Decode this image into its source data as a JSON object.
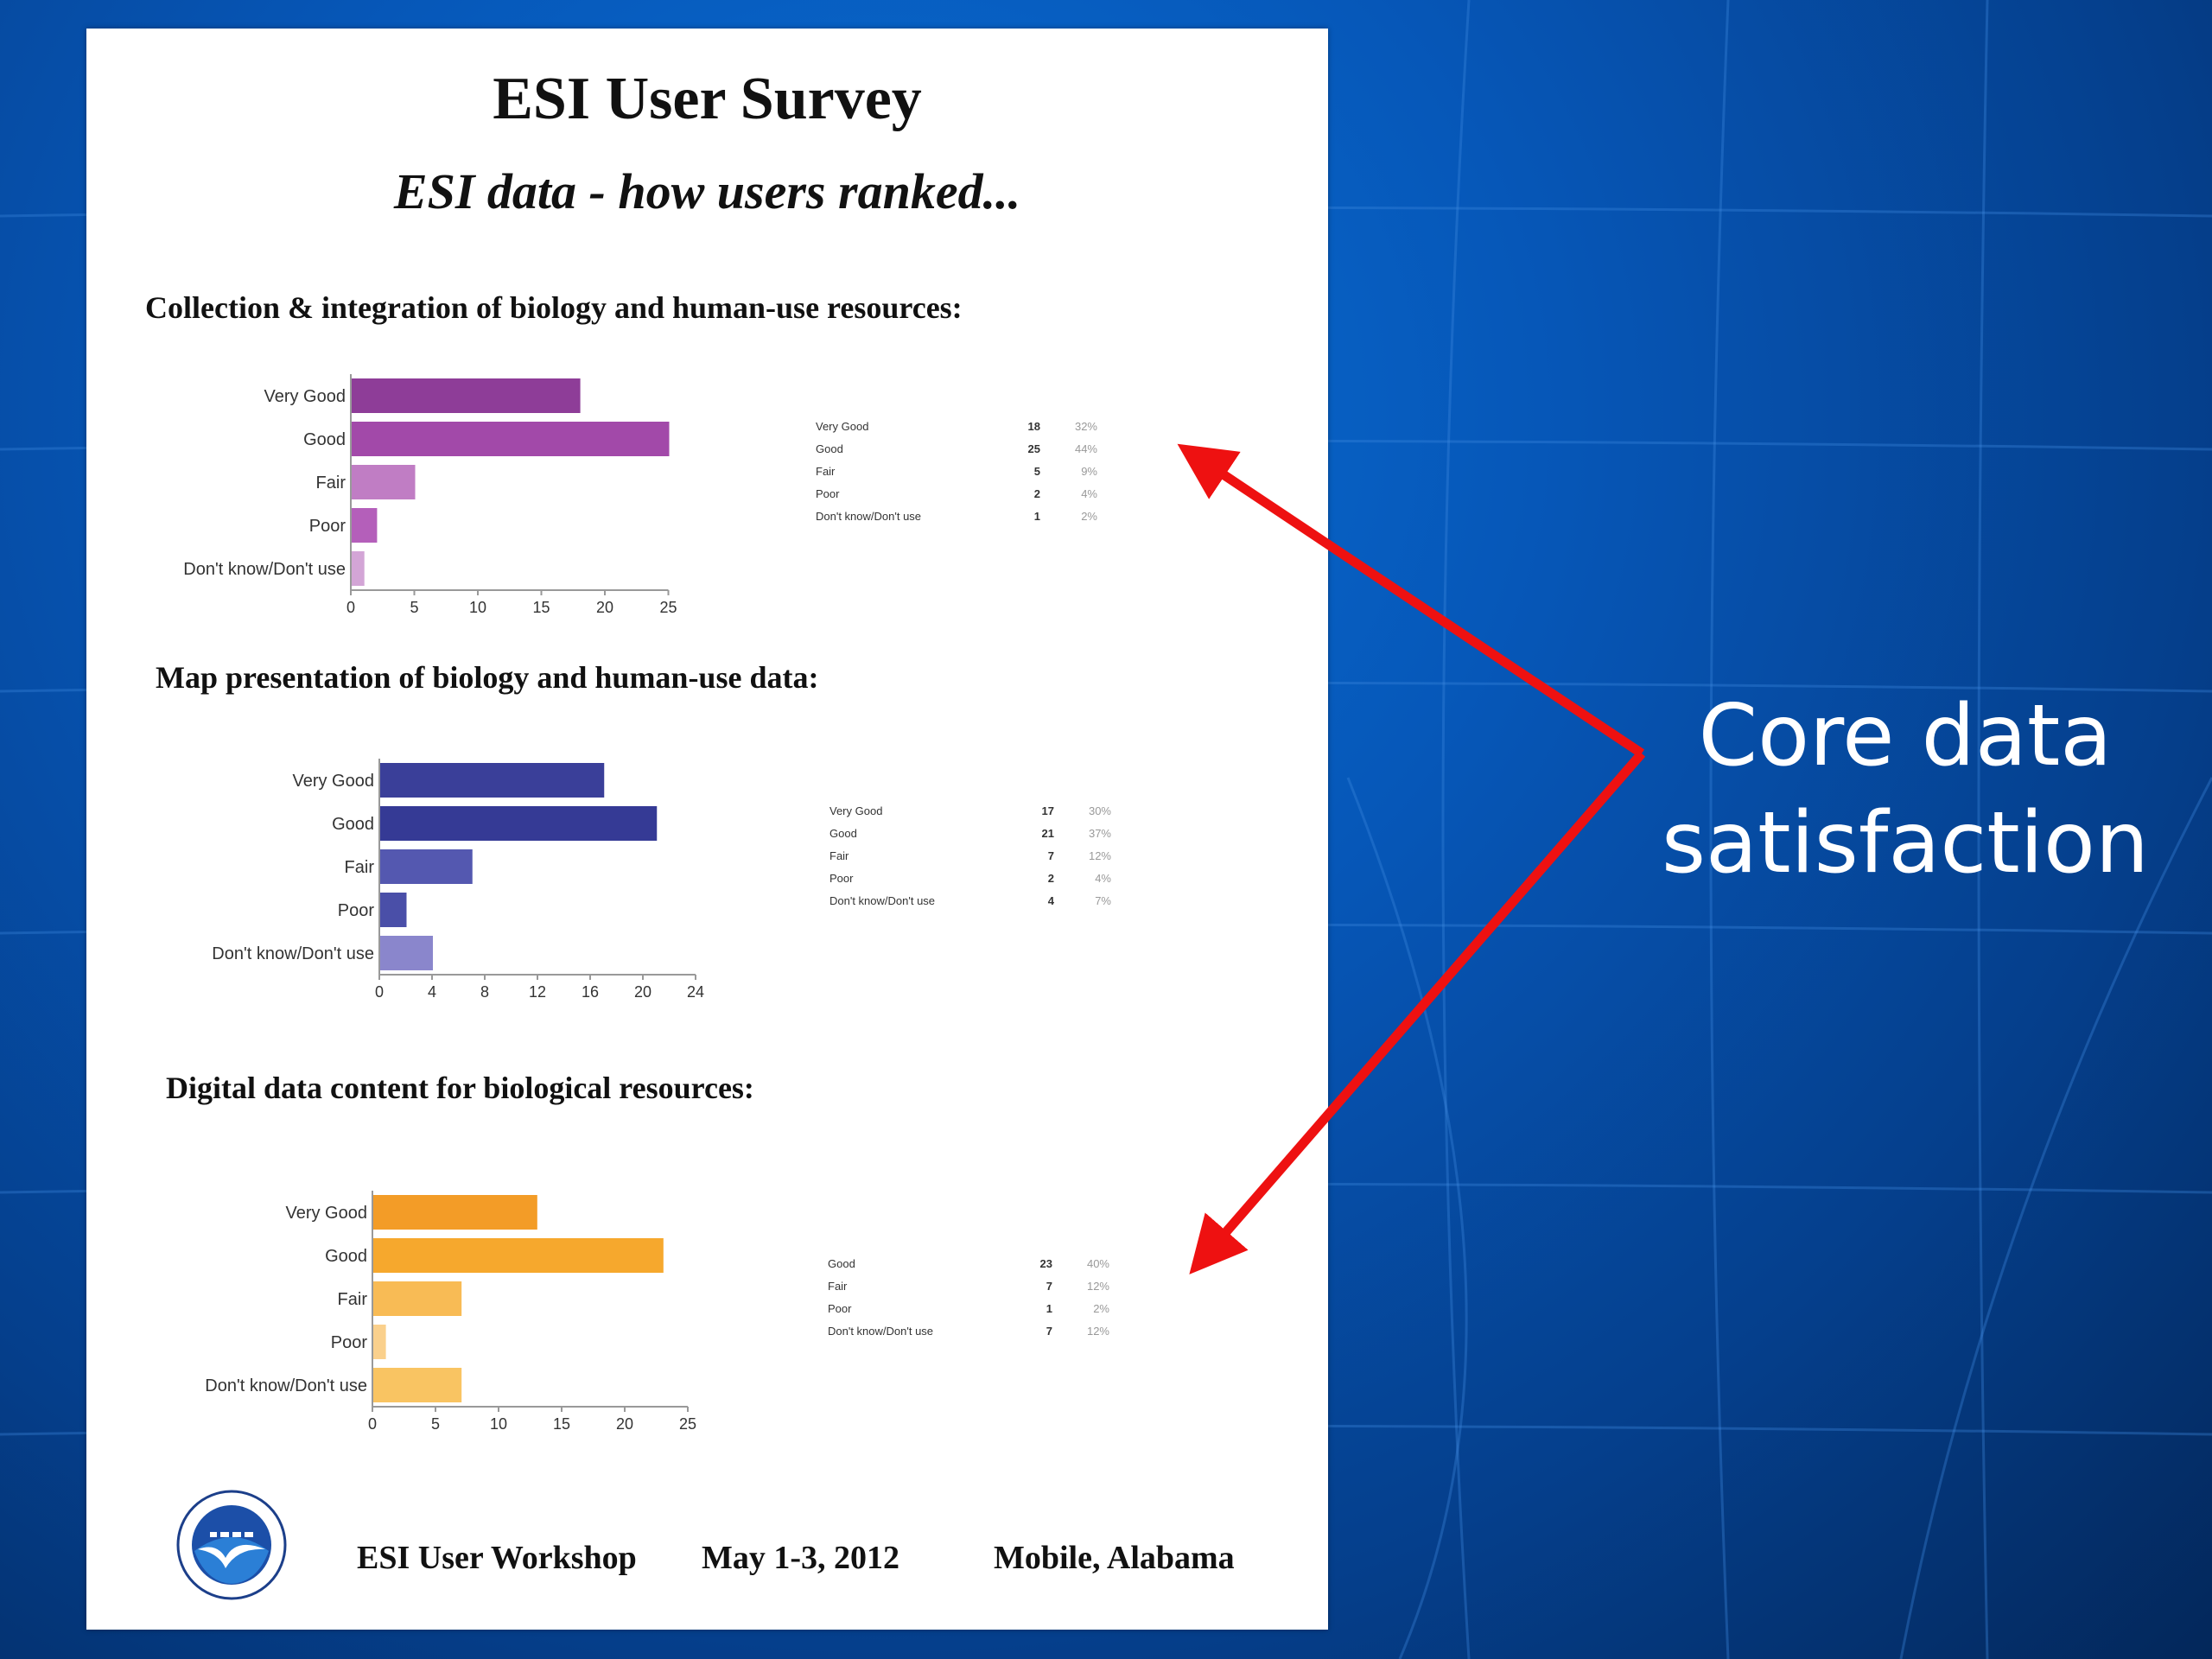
{
  "document": {
    "title": "ESI User Survey",
    "subtitle": "ESI data - how users ranked...",
    "footer": {
      "event": "ESI User Workshop",
      "dates": "May 1-3, 2012",
      "location": "Mobile, Alabama"
    },
    "logo_icon": "noaa-logo-icon"
  },
  "callout": {
    "line1": "Core data",
    "line2": "satisfaction",
    "color": "#ffffff",
    "arrow_color": "#ee1111"
  },
  "chart_data": [
    {
      "type": "bar",
      "orientation": "horizontal",
      "title": "Collection & integration of biology and human-use resources:",
      "categories": [
        "Very Good",
        "Good",
        "Fair",
        "Poor",
        "Don't know/Don't use"
      ],
      "values": [
        18,
        25,
        5,
        2,
        1
      ],
      "xlim": [
        0,
        25
      ],
      "xticks": [
        0,
        5,
        10,
        15,
        20,
        25
      ],
      "colors": [
        "#8e3d98",
        "#a249a9",
        "#c07dc4",
        "#b45fba",
        "#d3a5d6"
      ],
      "table": [
        {
          "label": "Very Good",
          "count": "18",
          "percent": "32%"
        },
        {
          "label": "Good",
          "count": "25",
          "percent": "44%"
        },
        {
          "label": "Fair",
          "count": "5",
          "percent": "9%"
        },
        {
          "label": "Poor",
          "count": "2",
          "percent": "4%"
        },
        {
          "label": "Don't know/Don't use",
          "count": "1",
          "percent": "2%"
        }
      ]
    },
    {
      "type": "bar",
      "orientation": "horizontal",
      "title": "Map presentation of biology and human-use data:",
      "categories": [
        "Very Good",
        "Good",
        "Fair",
        "Poor",
        "Don't know/Don't use"
      ],
      "values": [
        17,
        21,
        7,
        2,
        4
      ],
      "xlim": [
        0,
        24
      ],
      "xticks": [
        0,
        4,
        8,
        12,
        16,
        20,
        24
      ],
      "colors": [
        "#3a3f99",
        "#353a95",
        "#5458b0",
        "#4a4fa8",
        "#8a86cc"
      ],
      "table": [
        {
          "label": "Very Good",
          "count": "17",
          "percent": "30%"
        },
        {
          "label": "Good",
          "count": "21",
          "percent": "37%"
        },
        {
          "label": "Fair",
          "count": "7",
          "percent": "12%"
        },
        {
          "label": "Poor",
          "count": "2",
          "percent": "4%"
        },
        {
          "label": "Don't know/Don't use",
          "count": "4",
          "percent": "7%"
        }
      ]
    },
    {
      "type": "bar",
      "orientation": "horizontal",
      "title": "Digital data content for biological resources:",
      "categories": [
        "Very Good",
        "Good",
        "Fair",
        "Poor",
        "Don't know/Don't use"
      ],
      "values": [
        13,
        23,
        7,
        1,
        7
      ],
      "xlim": [
        0,
        25
      ],
      "xticks": [
        0,
        5,
        10,
        15,
        20,
        25
      ],
      "colors": [
        "#f39c27",
        "#f6a82d",
        "#f8bb55",
        "#fad08c",
        "#f9c462"
      ],
      "table": [
        {
          "label": "Good",
          "count": "23",
          "percent": "40%"
        },
        {
          "label": "Fair",
          "count": "7",
          "percent": "12%"
        },
        {
          "label": "Poor",
          "count": "1",
          "percent": "2%"
        },
        {
          "label": "Don't know/Don't use",
          "count": "7",
          "percent": "12%"
        }
      ]
    }
  ]
}
